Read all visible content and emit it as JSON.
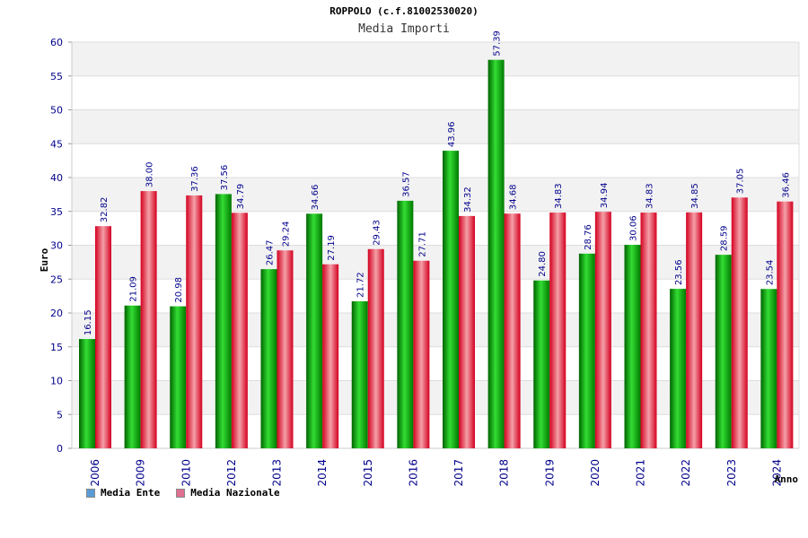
{
  "title": "ROPPOLO (c.f.81002530020)",
  "subtitle": "Media Importi",
  "colors": {
    "ente": "#00b000",
    "nazionale": "#e8283c",
    "legend_ente": "#5b9bd5",
    "legend_nazionale": "#e07090",
    "axis_text": "#00008b",
    "value_text": "#00008b"
  },
  "legend": [
    {
      "label": "Media Ente"
    },
    {
      "label": "Media Nazionale"
    }
  ],
  "chart_data": {
    "type": "bar",
    "title": "ROPPOLO (c.f.81002530020)",
    "subtitle": "Media Importi",
    "xlabel": "Anno",
    "ylabel": "Euro",
    "ylim": [
      0,
      60
    ],
    "yticks": [
      "0",
      "5",
      "10",
      "15",
      "20",
      "25",
      "30",
      "35",
      "40",
      "45",
      "50",
      "55",
      "60"
    ],
    "grid": true,
    "legend_position": "bottom-left",
    "categories": [
      "2006",
      "2009",
      "2010",
      "2012",
      "2013",
      "2014",
      "2015",
      "2016",
      "2017",
      "2018",
      "2019",
      "2020",
      "2021",
      "2022",
      "2023",
      "2024"
    ],
    "series": [
      {
        "name": "Media Ente",
        "values": [
          16.15,
          21.09,
          20.98,
          37.56,
          26.47,
          34.66,
          21.72,
          36.57,
          43.96,
          57.39,
          24.8,
          28.76,
          30.06,
          23.56,
          28.59,
          23.54
        ],
        "labels": [
          "16.15",
          "21.09",
          "20.98",
          "37.56",
          "26.47",
          "34.66",
          "21.72",
          "36.57",
          "43.96",
          "57.39",
          "24.80",
          "28.76",
          "30.06",
          "23.56",
          "28.59",
          "23.54"
        ]
      },
      {
        "name": "Media Nazionale",
        "values": [
          32.82,
          38.0,
          37.36,
          34.79,
          29.24,
          27.19,
          29.43,
          27.71,
          34.32,
          34.68,
          34.83,
          34.94,
          34.83,
          34.85,
          37.05,
          36.46
        ],
        "labels": [
          "32.82",
          "38.00",
          "37.36",
          "34.79",
          "29.24",
          "27.19",
          "29.43",
          "27.71",
          "34.32",
          "34.68",
          "34.83",
          "34.94",
          "34.83",
          "34.85",
          "37.05",
          "36.46"
        ]
      }
    ]
  }
}
